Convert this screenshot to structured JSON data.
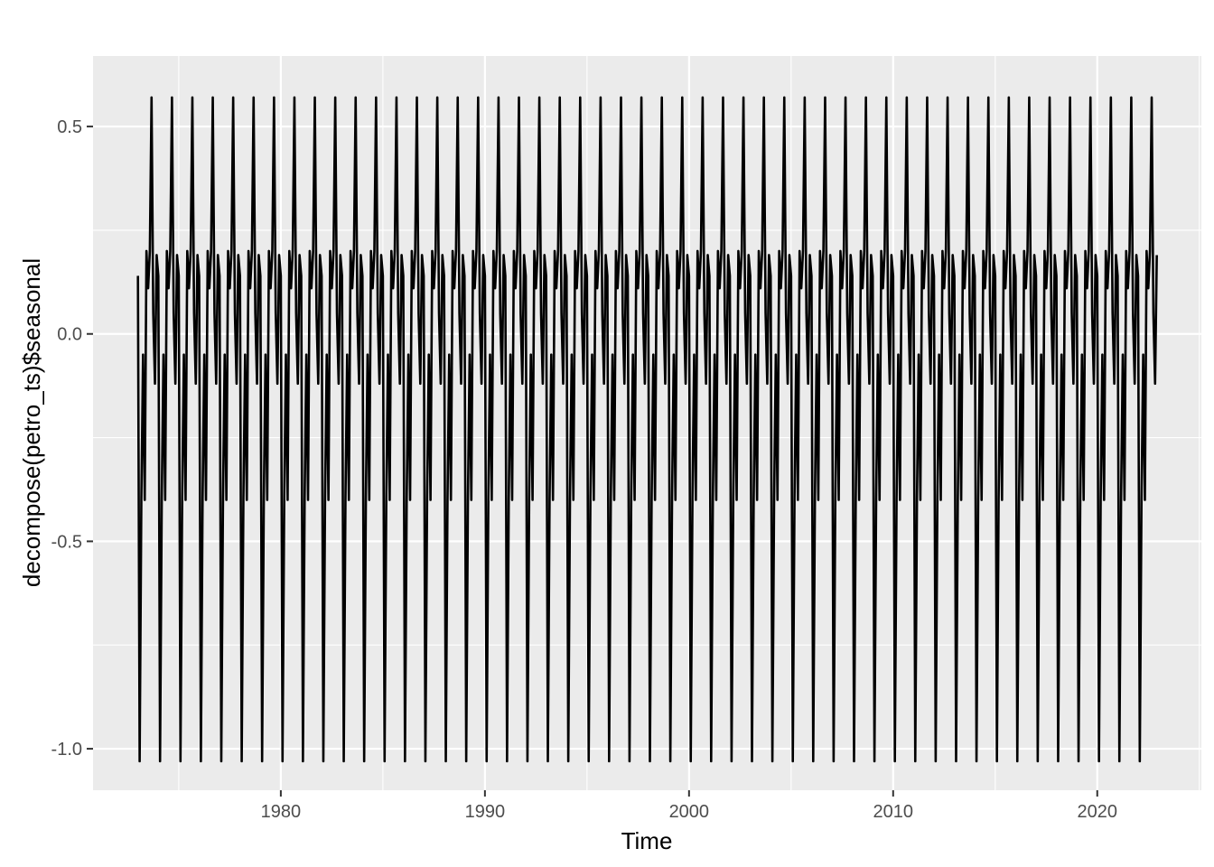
{
  "chart_data": {
    "type": "line",
    "title": "",
    "xlabel": "Time",
    "ylabel": "decompose(petro_ts)$seasonal",
    "xlim": [
      1970.8,
      2025.1
    ],
    "ylim": [
      -1.1,
      0.67
    ],
    "x_major_ticks": [
      1980,
      1990,
      2000,
      2010,
      2020
    ],
    "x_tick_labels": [
      "1980",
      "1990",
      "2000",
      "2010",
      "2020"
    ],
    "x_minor_ticks": [
      1975,
      1985,
      1995,
      2005,
      2015,
      2025
    ],
    "y_major_ticks": [
      -1.0,
      -0.5,
      0.0,
      0.5
    ],
    "y_tick_labels": [
      "-1.0",
      "-0.5",
      "0.0",
      "0.5"
    ],
    "y_minor_ticks": [
      -0.75,
      -0.25,
      0.25
    ],
    "grid": true,
    "series": [
      {
        "start": 1973.0,
        "frequency": 12,
        "periods": 50,
        "seasonal_pattern": [
          0.14,
          -1.03,
          -0.4,
          -0.05,
          -0.4,
          0.2,
          0.11,
          0.2,
          0.57,
          0.05,
          -0.12,
          0.19
        ]
      }
    ],
    "colors": {
      "panel": "#ebebeb",
      "grid": "#ffffff",
      "line": "#000000",
      "tick": "#333333"
    }
  }
}
